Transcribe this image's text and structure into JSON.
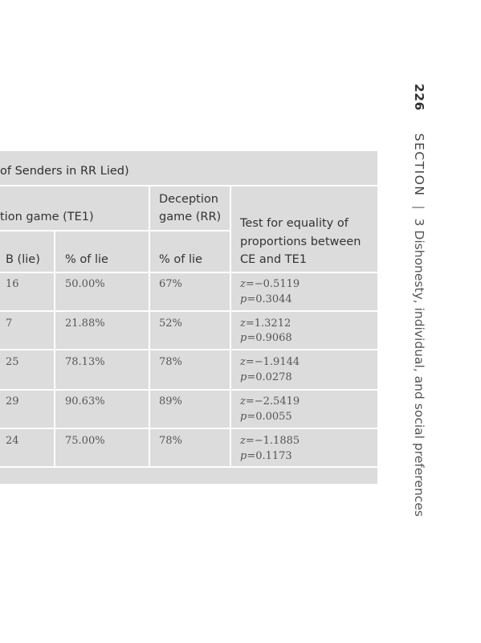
{
  "running_head": {
    "page_number": "226",
    "section_label": "SECTION",
    "separator": "|",
    "section_title": "3 Dishonesty, individual, and social preferences"
  },
  "table": {
    "caption": "of Senders in RR Lied)",
    "group_header_te1": "tion game (TE1)",
    "group_header_rr": [
      "Deception",
      "game (RR)"
    ],
    "test_header": [
      "Test for equality of",
      "proportions between",
      "CE and TE1"
    ],
    "col_headers": [
      "B (lie)",
      "% of lie",
      "% of lie"
    ],
    "rows": [
      {
        "b_lie": "16",
        "pct_te1": "50.00%",
        "pct_rr": "67%",
        "z": "=−0.5119",
        "p": "=0.3044"
      },
      {
        "b_lie": "7",
        "pct_te1": "21.88%",
        "pct_rr": "52%",
        "z": "=1.3212",
        "p": "=0.9068"
      },
      {
        "b_lie": "25",
        "pct_te1": "78.13%",
        "pct_rr": "78%",
        "z": "=−1.9144",
        "p": "=0.0278"
      },
      {
        "b_lie": "29",
        "pct_te1": "90.63%",
        "pct_rr": "89%",
        "z": "=−2.5419",
        "p": "=0.0055"
      },
      {
        "b_lie": "24",
        "pct_te1": "75.00%",
        "pct_rr": "78%",
        "z": "=−1.1885",
        "p": "=0.1173"
      }
    ],
    "z_symbol": "z",
    "p_symbol": "p"
  }
}
